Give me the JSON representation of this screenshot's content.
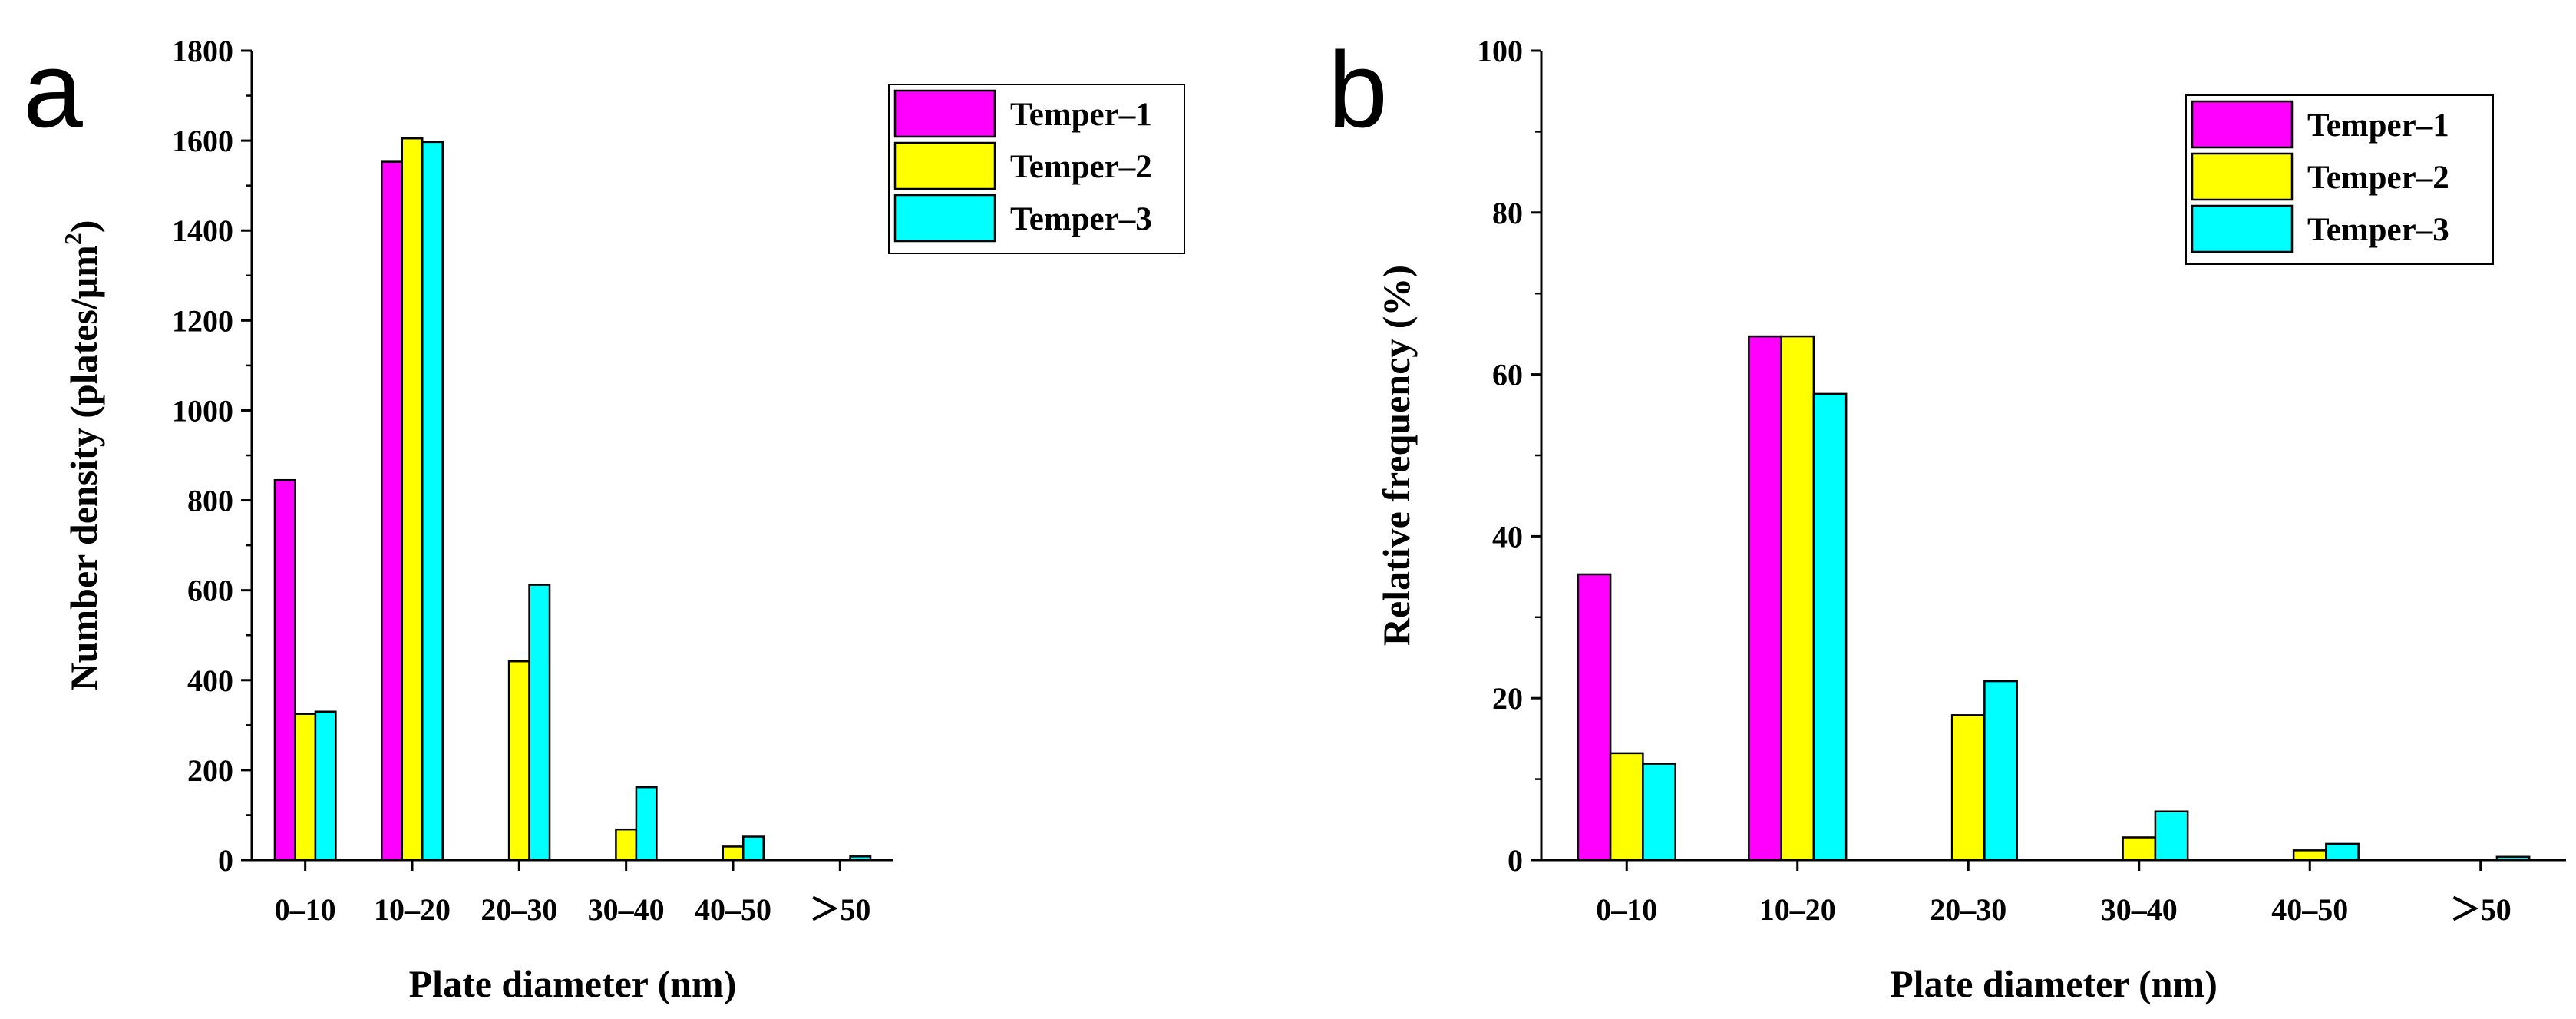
{
  "chart_data": [
    {
      "panel_label": "a",
      "type": "bar",
      "categories": [
        "0–10",
        "10–20",
        "20–30",
        "30–40",
        "40–50",
        "＞50"
      ],
      "series": [
        {
          "name": "Temper–1",
          "color": "#ff00ff",
          "values": [
            845,
            1553,
            0,
            0,
            0,
            0
          ]
        },
        {
          "name": "Temper–2",
          "color": "#ffff00",
          "values": [
            325,
            1605,
            442,
            68,
            30,
            0
          ]
        },
        {
          "name": "Temper–3",
          "color": "#00ffff",
          "values": [
            330,
            1597,
            612,
            162,
            52,
            8
          ]
        }
      ],
      "xlabel": "Plate diameter (nm)",
      "ylabel": "Number density (plates/μm",
      "ylabel_sup": "2",
      "ylabel_end": ")",
      "ylim": [
        0,
        1800
      ],
      "yticks": [
        0,
        200,
        400,
        600,
        800,
        1000,
        1200,
        1400,
        1600,
        1800
      ],
      "legend_position": "top-right"
    },
    {
      "panel_label": "b",
      "type": "bar",
      "categories": [
        "0–10",
        "10–20",
        "20–30",
        "30–40",
        "40–50",
        "＞50"
      ],
      "series": [
        {
          "name": "Temper–1",
          "color": "#ff00ff",
          "values": [
            35.3,
            64.7,
            0,
            0,
            0,
            0
          ]
        },
        {
          "name": "Temper–2",
          "color": "#ffff00",
          "values": [
            13.2,
            64.7,
            17.9,
            2.8,
            1.2,
            0
          ]
        },
        {
          "name": "Temper–3",
          "color": "#00ffff",
          "values": [
            11.9,
            57.6,
            22.1,
            6.0,
            2.0,
            0.4
          ]
        }
      ],
      "xlabel": "Plate diameter (nm)",
      "ylabel": "Relative frequency (%)",
      "ylim": [
        0,
        100
      ],
      "yticks": [
        0,
        20,
        40,
        60,
        80,
        100
      ],
      "legend_position": "top-right"
    }
  ]
}
